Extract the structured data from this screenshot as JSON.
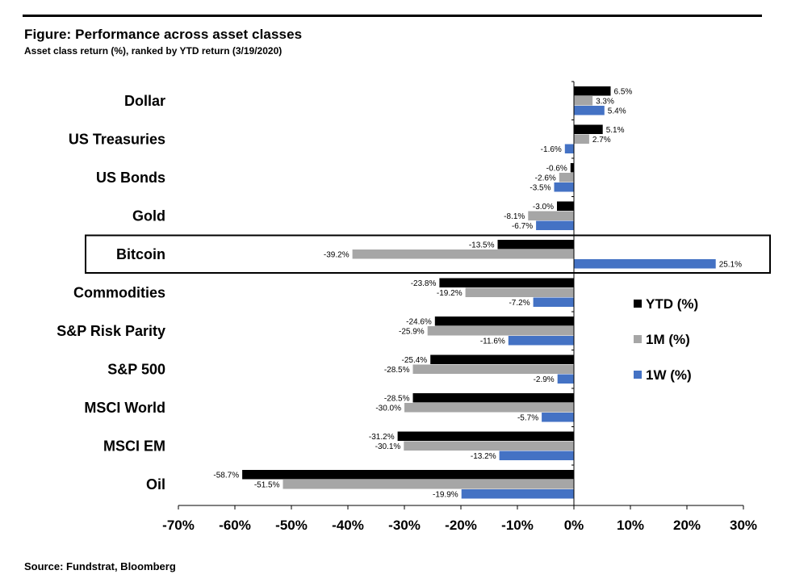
{
  "header": {
    "title": "Figure: Performance across asset classes",
    "subtitle": "Asset class return (%), ranked by YTD return (3/19/2020)"
  },
  "footer": {
    "source": "Source: Fundstrat, Bloomberg"
  },
  "chart_data": {
    "type": "bar",
    "orientation": "horizontal",
    "title": "Figure: Performance across asset classes",
    "subtitle": "Asset class return (%), ranked by YTD return (3/19/2020)",
    "categories": [
      "Dollar",
      "US Treasuries",
      "US Bonds",
      "Gold",
      "Bitcoin",
      "Commodities",
      "S&P Risk Parity",
      "S&P 500",
      "MSCI World",
      "MSCI EM",
      "Oil"
    ],
    "series": [
      {
        "name": "YTD (%)",
        "color": "#000000",
        "values": [
          6.5,
          5.1,
          -0.6,
          -3.0,
          -13.5,
          -23.8,
          -24.6,
          -25.4,
          -28.5,
          -31.2,
          -58.7
        ]
      },
      {
        "name": "1M (%)",
        "color": "#a6a6a6",
        "values": [
          3.3,
          2.7,
          -2.6,
          -8.1,
          -39.2,
          -19.2,
          -25.9,
          -28.5,
          -30.0,
          -30.1,
          -51.5
        ]
      },
      {
        "name": "1W (%)",
        "color": "#4472c4",
        "values": [
          5.4,
          -1.6,
          -3.5,
          -6.7,
          25.1,
          -7.2,
          -11.6,
          -2.9,
          -5.7,
          -13.2,
          -19.9
        ]
      }
    ],
    "xlim": [
      -70,
      30
    ],
    "xticks": [
      -70,
      -60,
      -50,
      -40,
      -30,
      -20,
      -10,
      0,
      10,
      20,
      30
    ],
    "tick_format": "%",
    "highlighted_category": "Bitcoin",
    "legend_position": "right",
    "grid": false
  }
}
